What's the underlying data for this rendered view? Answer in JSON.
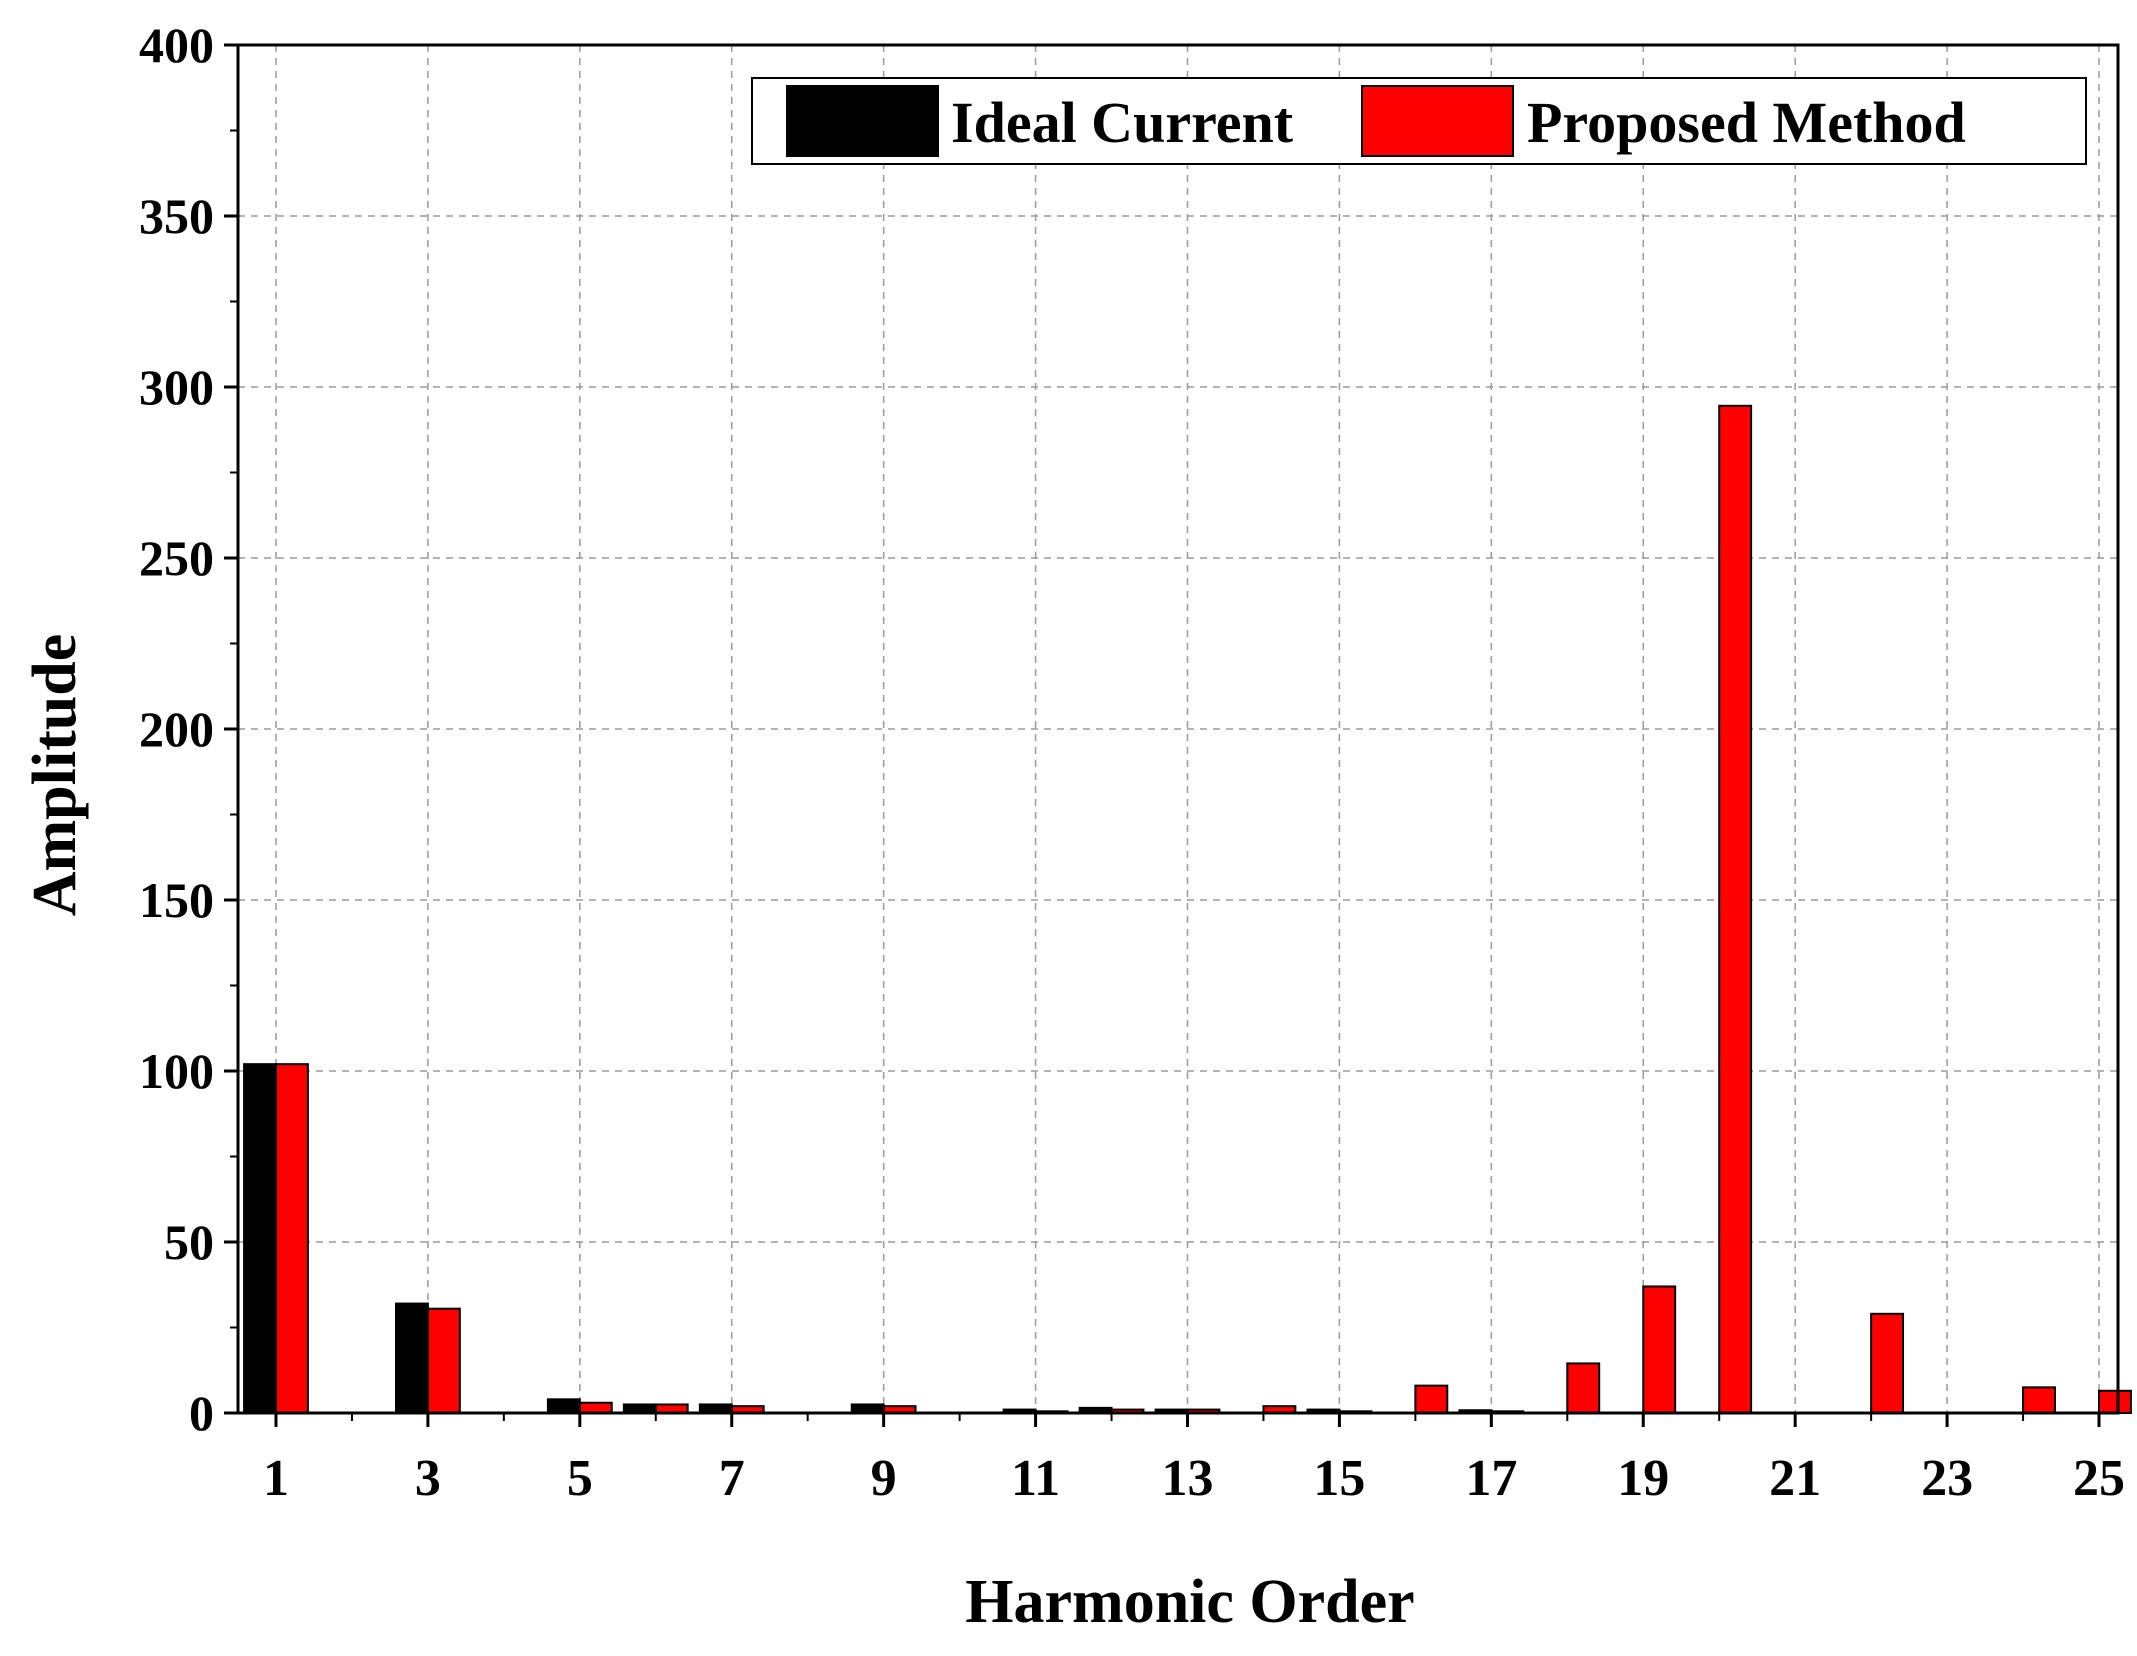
{
  "chart_data": {
    "type": "bar",
    "title": "",
    "xlabel": "Harmonic Order",
    "ylabel": "Amplitude",
    "xlim": [
      0.5,
      25.25
    ],
    "ylim": [
      0,
      400
    ],
    "xticks": [
      1,
      3,
      5,
      7,
      9,
      11,
      13,
      15,
      17,
      19,
      21,
      23,
      25
    ],
    "yticks": [
      0,
      50,
      100,
      150,
      200,
      250,
      300,
      350,
      400
    ],
    "grid": true,
    "legend_position": "top-right",
    "categories": [
      1,
      2,
      3,
      4,
      5,
      6,
      7,
      8,
      9,
      10,
      11,
      12,
      13,
      14,
      15,
      16,
      17,
      18,
      19,
      20,
      21,
      22,
      23,
      24,
      25
    ],
    "series": [
      {
        "name": "Ideal Current",
        "color": "#000000",
        "values": [
          102,
          0,
          32,
          0,
          4,
          2.5,
          2.5,
          0,
          2.5,
          0,
          1,
          1.5,
          1,
          0,
          1,
          0,
          0.8,
          0,
          0,
          0,
          0,
          0,
          0,
          0,
          0
        ]
      },
      {
        "name": "Proposed Method",
        "color": "#ff0000",
        "values": [
          102,
          0,
          30.5,
          0,
          3,
          2.5,
          2,
          0,
          2,
          0,
          0.5,
          1,
          1,
          2,
          0.5,
          8,
          0.5,
          14.5,
          37,
          294.5,
          0,
          29,
          0,
          7.5,
          6.5
        ]
      }
    ]
  }
}
